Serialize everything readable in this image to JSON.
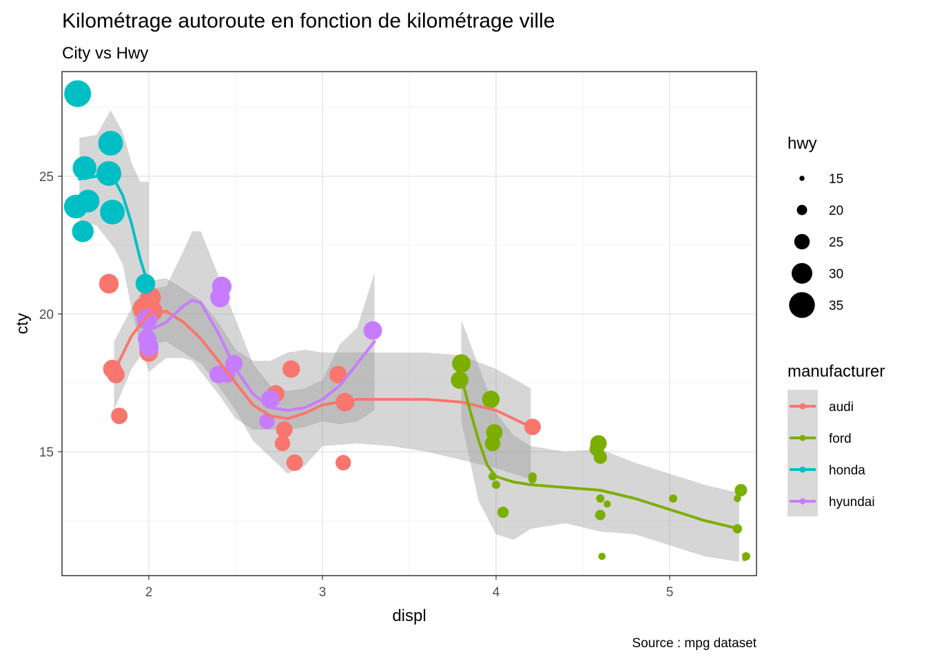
{
  "chart_data": {
    "type": "scatter",
    "title": "Kilométrage autoroute en fonction de kilométrage ville",
    "subtitle": "City vs Hwy",
    "xlabel": "displ",
    "ylabel": "cty",
    "caption": "Source : mpg dataset",
    "xlim": [
      1.5,
      5.5
    ],
    "ylim": [
      10.5,
      28.8
    ],
    "x_ticks": [
      2,
      3,
      4,
      5
    ],
    "y_ticks": [
      15,
      20,
      25
    ],
    "grid": true,
    "legend_position": "right",
    "size_legend": {
      "title": "hwy",
      "values": [
        15,
        20,
        25,
        30,
        35
      ]
    },
    "color_legend": {
      "title": "manufacturer",
      "labels": [
        "audi",
        "ford",
        "honda",
        "hyundai"
      ]
    },
    "colors": {
      "audi": "#F8766D",
      "ford": "#7CAE00",
      "honda": "#00BFC4",
      "hyundai": "#C77CFF",
      "ribbon": "#999999"
    },
    "series": [
      {
        "name": "audi",
        "points": [
          {
            "x": 1.77,
            "y": 21.1,
            "hwy": 29
          },
          {
            "x": 1.79,
            "y": 18.0,
            "hwy": 28
          },
          {
            "x": 1.81,
            "y": 17.8,
            "hwy": 27
          },
          {
            "x": 1.83,
            "y": 16.3,
            "hwy": 26
          },
          {
            "x": 1.97,
            "y": 20.2,
            "hwy": 31
          },
          {
            "x": 2.01,
            "y": 20.6,
            "hwy": 30
          },
          {
            "x": 2.0,
            "y": 18.6,
            "hwy": 28
          },
          {
            "x": 2.02,
            "y": 20.1,
            "hwy": 30
          },
          {
            "x": 2.73,
            "y": 17.1,
            "hwy": 27
          },
          {
            "x": 2.78,
            "y": 15.8,
            "hwy": 26
          },
          {
            "x": 2.77,
            "y": 15.3,
            "hwy": 25
          },
          {
            "x": 2.82,
            "y": 18.0,
            "hwy": 27
          },
          {
            "x": 2.84,
            "y": 14.6,
            "hwy": 26
          },
          {
            "x": 3.09,
            "y": 17.8,
            "hwy": 27
          },
          {
            "x": 3.13,
            "y": 16.8,
            "hwy": 28
          },
          {
            "x": 3.12,
            "y": 14.6,
            "hwy": 25
          },
          {
            "x": 4.21,
            "y": 15.9,
            "hwy": 26
          }
        ],
        "smooth": [
          [
            1.8,
            17.9
          ],
          [
            1.9,
            19.2
          ],
          [
            2.0,
            20.0
          ],
          [
            2.1,
            20.1
          ],
          [
            2.2,
            19.7
          ],
          [
            2.3,
            19.1
          ],
          [
            2.4,
            18.3
          ],
          [
            2.5,
            17.5
          ],
          [
            2.6,
            16.7
          ],
          [
            2.7,
            16.3
          ],
          [
            2.8,
            16.2
          ],
          [
            2.9,
            16.4
          ],
          [
            3.0,
            16.7
          ],
          [
            3.2,
            16.9
          ],
          [
            3.4,
            16.9
          ],
          [
            3.6,
            16.9
          ],
          [
            3.8,
            16.8
          ],
          [
            4.0,
            16.5
          ],
          [
            4.2,
            15.9
          ]
        ],
        "ribbon_upper": [
          [
            1.8,
            19.0
          ],
          [
            1.9,
            20.2
          ],
          [
            2.0,
            21.2
          ],
          [
            2.1,
            21.3
          ],
          [
            2.2,
            20.9
          ],
          [
            2.3,
            20.5
          ],
          [
            2.4,
            19.7
          ],
          [
            2.5,
            18.7
          ],
          [
            2.6,
            18.3
          ],
          [
            2.7,
            18.3
          ],
          [
            2.8,
            18.6
          ],
          [
            2.9,
            18.7
          ],
          [
            3.0,
            18.6
          ],
          [
            3.2,
            18.6
          ],
          [
            3.4,
            18.6
          ],
          [
            3.6,
            18.6
          ],
          [
            3.8,
            18.5
          ],
          [
            4.0,
            18.0
          ],
          [
            4.2,
            17.3
          ]
        ],
        "ribbon_lower": [
          [
            1.8,
            16.5
          ],
          [
            1.9,
            18.0
          ],
          [
            2.0,
            18.9
          ],
          [
            2.1,
            19.0
          ],
          [
            2.2,
            18.6
          ],
          [
            2.3,
            18.2
          ],
          [
            2.4,
            17.4
          ],
          [
            2.5,
            16.5
          ],
          [
            2.6,
            15.4
          ],
          [
            2.7,
            14.8
          ],
          [
            2.8,
            14.2
          ],
          [
            2.9,
            14.5
          ],
          [
            3.0,
            15.2
          ],
          [
            3.2,
            15.3
          ],
          [
            3.4,
            15.2
          ],
          [
            3.6,
            15.0
          ],
          [
            3.8,
            14.7
          ],
          [
            4.0,
            14.4
          ],
          [
            4.2,
            14.0
          ]
        ]
      },
      {
        "name": "ford",
        "points": [
          {
            "x": 3.8,
            "y": 18.2,
            "hwy": 28
          },
          {
            "x": 3.79,
            "y": 17.6,
            "hwy": 27
          },
          {
            "x": 3.97,
            "y": 16.9,
            "hwy": 27
          },
          {
            "x": 3.99,
            "y": 15.7,
            "hwy": 26
          },
          {
            "x": 3.98,
            "y": 15.3,
            "hwy": 25
          },
          {
            "x": 3.98,
            "y": 14.1,
            "hwy": 18
          },
          {
            "x": 4.0,
            "y": 13.8,
            "hwy": 18
          },
          {
            "x": 4.04,
            "y": 12.8,
            "hwy": 21
          },
          {
            "x": 4.21,
            "y": 14.1,
            "hwy": 18
          },
          {
            "x": 4.21,
            "y": 14.0,
            "hwy": 18
          },
          {
            "x": 4.59,
            "y": 15.3,
            "hwy": 26
          },
          {
            "x": 4.58,
            "y": 15.1,
            "hwy": 24
          },
          {
            "x": 4.6,
            "y": 14.8,
            "hwy": 23
          },
          {
            "x": 4.6,
            "y": 13.3,
            "hwy": 18
          },
          {
            "x": 4.64,
            "y": 13.1,
            "hwy": 17
          },
          {
            "x": 4.6,
            "y": 12.7,
            "hwy": 20
          },
          {
            "x": 4.61,
            "y": 11.2,
            "hwy": 17
          },
          {
            "x": 5.02,
            "y": 13.3,
            "hwy": 18
          },
          {
            "x": 5.39,
            "y": 13.3,
            "hwy": 17
          },
          {
            "x": 5.41,
            "y": 13.6,
            "hwy": 22
          },
          {
            "x": 5.39,
            "y": 12.2,
            "hwy": 19
          },
          {
            "x": 5.44,
            "y": 11.2,
            "hwy": 18
          },
          {
            "x": 5.43,
            "y": 11.1,
            "hwy": 14
          }
        ],
        "smooth": [
          [
            3.8,
            17.7
          ],
          [
            3.85,
            16.5
          ],
          [
            3.9,
            15.4
          ],
          [
            3.95,
            14.5
          ],
          [
            4.0,
            14.1
          ],
          [
            4.1,
            13.9
          ],
          [
            4.2,
            13.8
          ],
          [
            4.4,
            13.7
          ],
          [
            4.6,
            13.6
          ],
          [
            4.8,
            13.3
          ],
          [
            5.0,
            12.9
          ],
          [
            5.2,
            12.5
          ],
          [
            5.4,
            12.2
          ]
        ],
        "ribbon_upper": [
          [
            3.8,
            19.8
          ],
          [
            3.9,
            18.1
          ],
          [
            4.0,
            16.4
          ],
          [
            4.1,
            15.6
          ],
          [
            4.2,
            15.2
          ],
          [
            4.4,
            15.0
          ],
          [
            4.6,
            15.1
          ],
          [
            4.8,
            14.6
          ],
          [
            5.0,
            14.2
          ],
          [
            5.2,
            13.8
          ],
          [
            5.4,
            13.5
          ]
        ],
        "ribbon_lower": [
          [
            3.8,
            16.1
          ],
          [
            3.9,
            13.2
          ],
          [
            4.0,
            12.0
          ],
          [
            4.1,
            11.8
          ],
          [
            4.2,
            12.2
          ],
          [
            4.4,
            12.4
          ],
          [
            4.6,
            12.1
          ],
          [
            4.8,
            12.0
          ],
          [
            5.0,
            11.6
          ],
          [
            5.2,
            11.2
          ],
          [
            5.4,
            11.0
          ]
        ]
      },
      {
        "name": "honda",
        "points": [
          {
            "x": 1.59,
            "y": 28.0,
            "hwy": 36
          },
          {
            "x": 1.78,
            "y": 26.2,
            "hwy": 34
          },
          {
            "x": 1.63,
            "y": 25.3,
            "hwy": 33
          },
          {
            "x": 1.77,
            "y": 25.1,
            "hwy": 34
          },
          {
            "x": 1.65,
            "y": 24.1,
            "hwy": 32
          },
          {
            "x": 1.58,
            "y": 23.9,
            "hwy": 33
          },
          {
            "x": 1.79,
            "y": 23.7,
            "hwy": 34
          },
          {
            "x": 1.62,
            "y": 23.0,
            "hwy": 31
          },
          {
            "x": 1.98,
            "y": 21.1,
            "hwy": 29
          }
        ],
        "smooth": [
          [
            1.6,
            24.9
          ],
          [
            1.7,
            25.0
          ],
          [
            1.8,
            24.9
          ],
          [
            1.85,
            24.3
          ],
          [
            1.9,
            23.3
          ],
          [
            1.95,
            22.0
          ],
          [
            2.0,
            21.0
          ]
        ],
        "ribbon_upper": [
          [
            1.6,
            26.4
          ],
          [
            1.7,
            26.5
          ],
          [
            1.78,
            27.4
          ],
          [
            1.85,
            26.6
          ],
          [
            1.9,
            25.5
          ],
          [
            1.95,
            24.8
          ],
          [
            2.0,
            24.8
          ]
        ],
        "ribbon_lower": [
          [
            1.6,
            23.4
          ],
          [
            1.7,
            23.2
          ],
          [
            1.8,
            22.4
          ],
          [
            1.85,
            21.8
          ],
          [
            1.9,
            20.2
          ],
          [
            1.95,
            18.9
          ],
          [
            2.0,
            17.9
          ]
        ]
      },
      {
        "name": "hyundai",
        "points": [
          {
            "x": 2.42,
            "y": 21.0,
            "hwy": 29
          },
          {
            "x": 2.41,
            "y": 20.6,
            "hwy": 29
          },
          {
            "x": 1.99,
            "y": 19.8,
            "hwy": 30
          },
          {
            "x": 1.99,
            "y": 19.1,
            "hwy": 28
          },
          {
            "x": 2.0,
            "y": 18.8,
            "hwy": 29
          },
          {
            "x": 2.49,
            "y": 18.2,
            "hwy": 27
          },
          {
            "x": 2.4,
            "y": 17.8,
            "hwy": 27
          },
          {
            "x": 2.45,
            "y": 17.8,
            "hwy": 26
          },
          {
            "x": 2.7,
            "y": 16.9,
            "hwy": 28
          },
          {
            "x": 2.68,
            "y": 16.1,
            "hwy": 25
          },
          {
            "x": 3.29,
            "y": 19.4,
            "hwy": 28
          }
        ],
        "smooth": [
          [
            2.0,
            19.4
          ],
          [
            2.1,
            19.7
          ],
          [
            2.2,
            20.3
          ],
          [
            2.25,
            20.5
          ],
          [
            2.3,
            20.4
          ],
          [
            2.4,
            19.3
          ],
          [
            2.5,
            18.0
          ],
          [
            2.6,
            17.1
          ],
          [
            2.7,
            16.6
          ],
          [
            2.8,
            16.5
          ],
          [
            2.9,
            16.6
          ],
          [
            3.0,
            16.9
          ],
          [
            3.1,
            17.4
          ],
          [
            3.2,
            18.2
          ],
          [
            3.3,
            19.0
          ]
        ],
        "ribbon_upper": [
          [
            2.0,
            20.9
          ],
          [
            2.1,
            21.0
          ],
          [
            2.2,
            22.3
          ],
          [
            2.25,
            23.0
          ],
          [
            2.3,
            23.0
          ],
          [
            2.4,
            21.4
          ],
          [
            2.5,
            19.8
          ],
          [
            2.6,
            18.2
          ],
          [
            2.7,
            17.4
          ],
          [
            2.8,
            17.2
          ],
          [
            2.9,
            17.3
          ],
          [
            3.0,
            17.6
          ],
          [
            3.1,
            18.9
          ],
          [
            3.2,
            19.5
          ],
          [
            3.3,
            21.5
          ]
        ],
        "ribbon_lower": [
          [
            2.0,
            17.9
          ],
          [
            2.1,
            18.4
          ],
          [
            2.2,
            18.4
          ],
          [
            2.25,
            18.3
          ],
          [
            2.3,
            17.9
          ],
          [
            2.4,
            17.1
          ],
          [
            2.5,
            16.2
          ],
          [
            2.6,
            15.8
          ],
          [
            2.7,
            15.8
          ],
          [
            2.8,
            15.8
          ],
          [
            2.9,
            15.9
          ],
          [
            3.0,
            16.1
          ],
          [
            3.1,
            16.0
          ],
          [
            3.2,
            16.1
          ],
          [
            3.3,
            16.5
          ]
        ]
      }
    ]
  }
}
